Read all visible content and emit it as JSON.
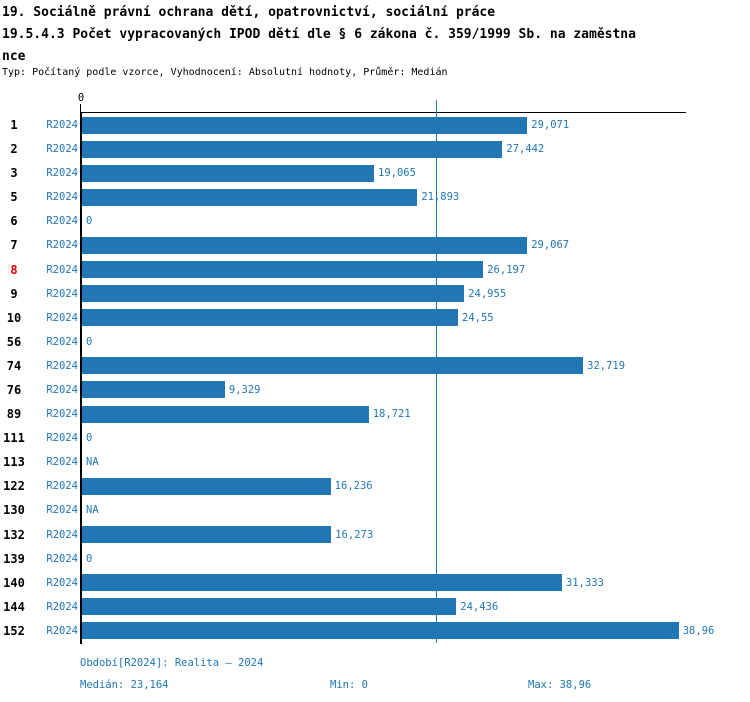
{
  "title": {
    "line1": "19. Sociálně právní ochrana dětí, opatrovnictví, sociální práce",
    "line2": "19.5.4.3 Počet vypracovaných IPOD dětí dle § 6 zákona č. 359/1999 Sb. na zaměstna",
    "line3": "nce",
    "subtitle": "Typ: Počítaný podle vzorce, Vyhodnocení: Absolutní hodnoty, Průměr: Medián"
  },
  "chart_data": {
    "type": "bar",
    "orientation": "horizontal",
    "title": "19.5.4.3 Počet vypracovaných IPOD dětí dle § 6 zákona č. 359/1999 Sb. na zaměstnance",
    "series_name": "R2024",
    "axis_zero_label": "0",
    "xlim": [
      0,
      39.5
    ],
    "grid": false,
    "categories": [
      "1",
      "2",
      "3",
      "5",
      "6",
      "7",
      "8",
      "9",
      "10",
      "56",
      "74",
      "76",
      "89",
      "111",
      "113",
      "122",
      "130",
      "132",
      "139",
      "140",
      "144",
      "152"
    ],
    "values": [
      29.071,
      27.442,
      19.065,
      21.893,
      0,
      29.067,
      26.197,
      24.955,
      24.55,
      0,
      32.719,
      9.329,
      18.721,
      0,
      null,
      16.236,
      null,
      16.273,
      0,
      31.333,
      24.436,
      38.96
    ],
    "value_labels": [
      "29,071",
      "27,442",
      "19,065",
      "21,893",
      "0",
      "29,067",
      "26,197",
      "24,955",
      "24,55",
      "0",
      "32,719",
      "9,329",
      "18,721",
      "0",
      "NA",
      "16,236",
      "NA",
      "16,273",
      "0",
      "31,333",
      "24,436",
      "38,96"
    ],
    "highlighted_category": "8",
    "median": 23.164,
    "min": 0,
    "max": 38.96
  },
  "footer": {
    "period": "Období[R2024]: Realita – 2024",
    "median": "Medián: 23,164",
    "min": "Min: 0",
    "max": "Max: 38,96"
  },
  "colors": {
    "bar": "#2077b4",
    "blue_text": "#2077b4",
    "highlight_red": "#dd0000",
    "axis": "#000000"
  }
}
